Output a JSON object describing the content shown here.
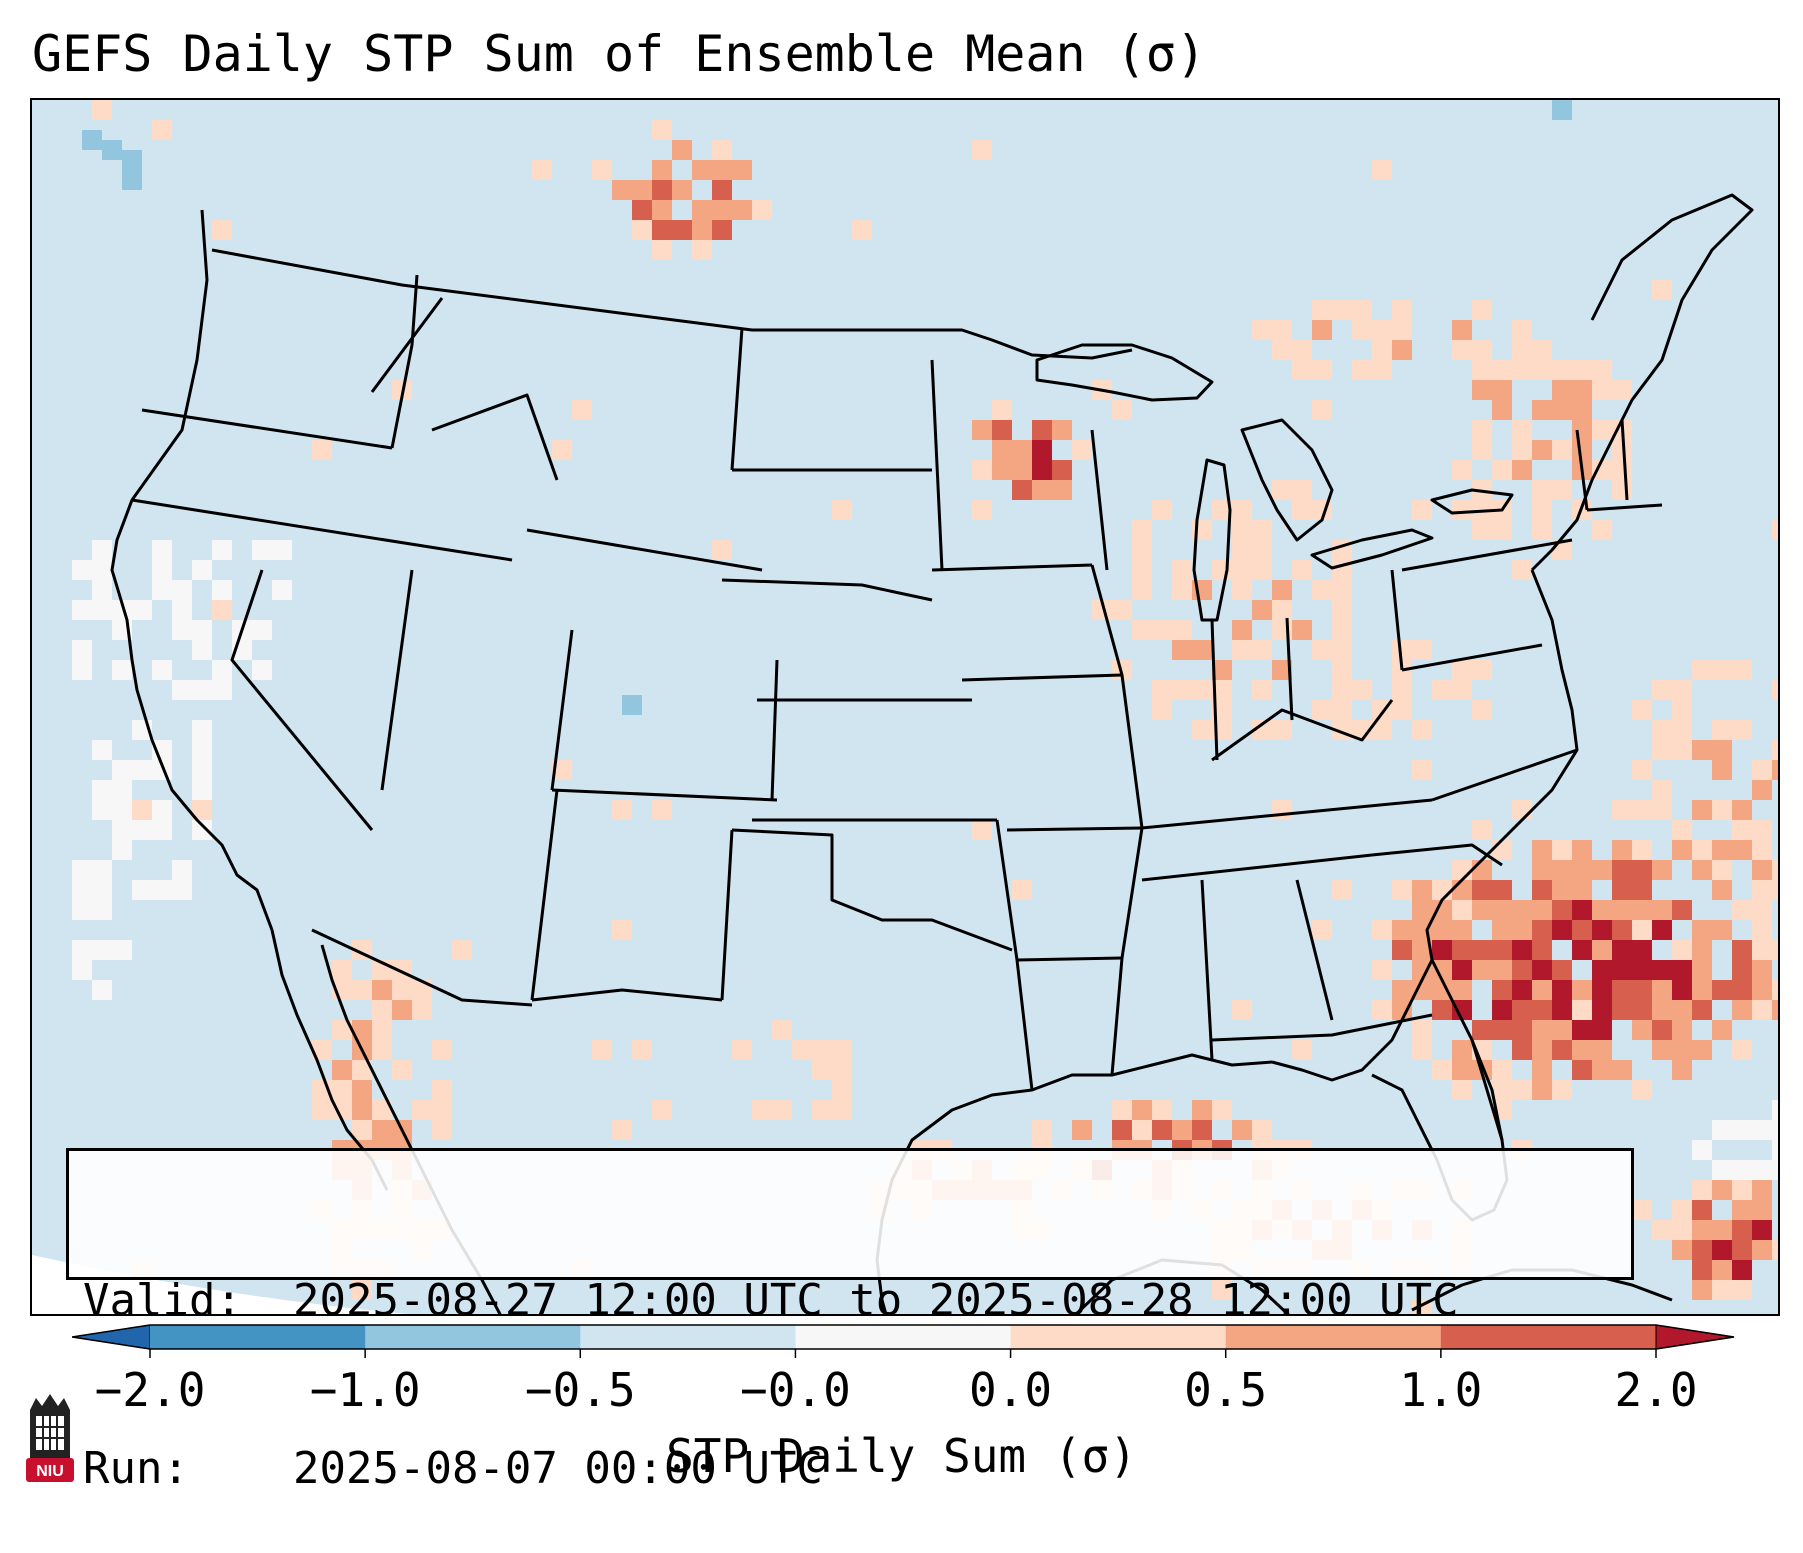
{
  "title": "GEFS Daily STP Sum of Ensemble Mean (σ)",
  "info": {
    "valid_key": "Valid:",
    "valid_value": "2025-08-27 12:00 UTC to 2025-08-28 12:00 UTC",
    "run_key": "Run:",
    "run_value": "2025-08-07 00:00 UTC"
  },
  "colorbar": {
    "label": "STP Daily Sum (σ)",
    "ticks": [
      "−2.0",
      "−1.0",
      "−0.5",
      "−0.0",
      "0.0",
      "0.5",
      "1.0",
      "2.0"
    ],
    "bins": [
      {
        "color": "#4393c3"
      },
      {
        "color": "#92c5de"
      },
      {
        "color": "#d1e5f0"
      },
      {
        "color": "#f7f7f7"
      },
      {
        "color": "#fddbc7"
      },
      {
        "color": "#f4a582"
      },
      {
        "color": "#d6604d"
      }
    ],
    "under_color": "#2166ac",
    "over_color": "#b2182b"
  },
  "logo": {
    "text": "NIU",
    "name": "niu-logo"
  },
  "colors": {
    "background": "#d1e5f0",
    "zero": "#f7f7f7",
    "light_pos": "#fddbc7",
    "mid_pos": "#f4a582",
    "high_pos": "#d6604d",
    "max_pos": "#b2182b",
    "light_neg": "#92c5de"
  }
}
